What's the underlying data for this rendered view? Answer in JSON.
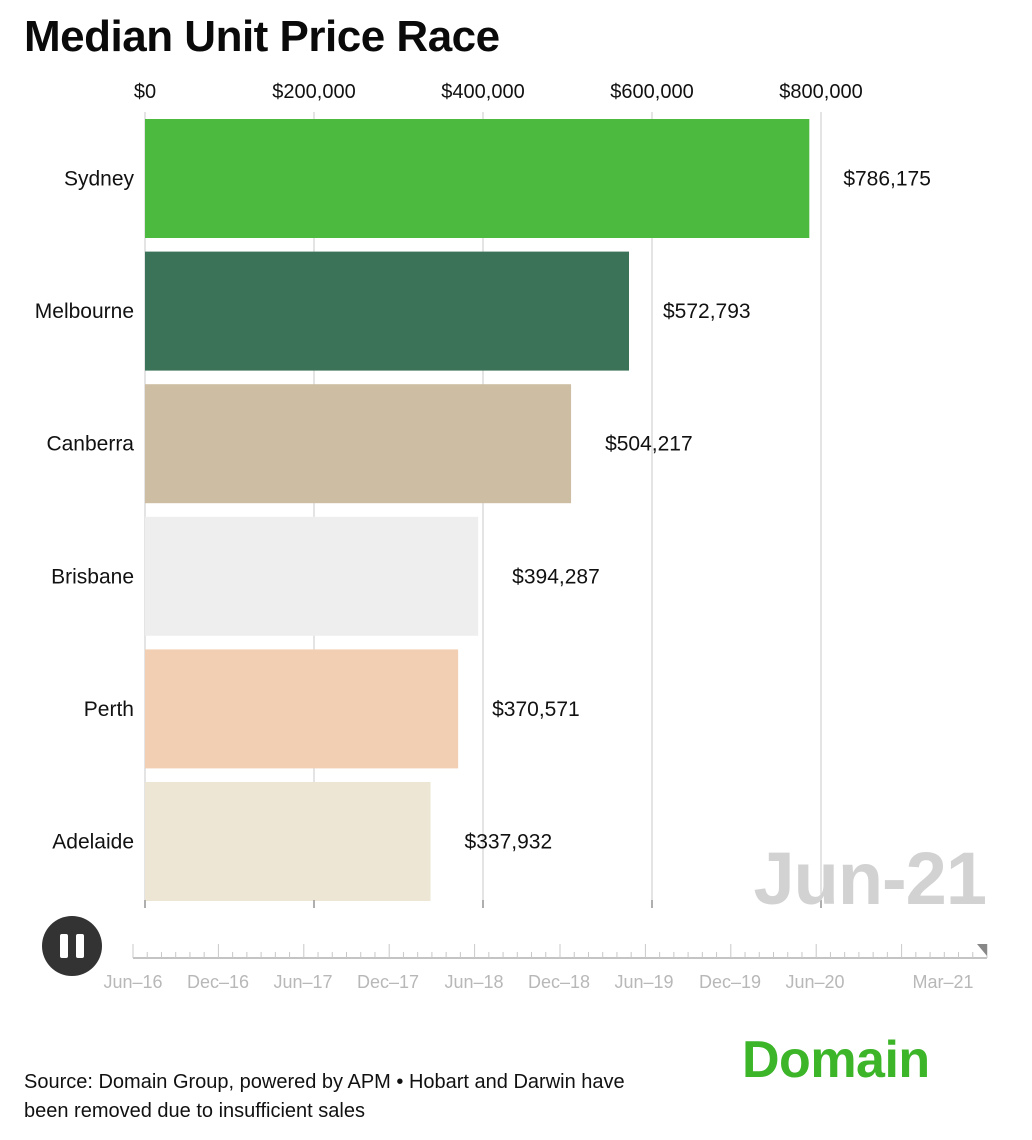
{
  "title": "Median Unit Price Race",
  "current_period": "Jun-21",
  "source_text": "Source: Domain Group, powered by APM • Hobart and Darwin have been removed due to insufficient sales",
  "brand": "Domain",
  "playback": {
    "state": "playing",
    "button_icon": "pause-icon"
  },
  "timeline": {
    "labels": [
      "Jun–16",
      "Dec–16",
      "Jun–17",
      "Dec–17",
      "Jun–18",
      "Dec–18",
      "Jun–19",
      "Dec–19",
      "Jun–20",
      "Mar–21"
    ],
    "position_label": "Jun-21",
    "progress": 1.0
  },
  "chart_data": {
    "type": "bar",
    "orientation": "horizontal",
    "title": "Median Unit Price Race",
    "categories": [
      "Sydney",
      "Melbourne",
      "Canberra",
      "Brisbane",
      "Perth",
      "Adelaide"
    ],
    "values": [
      786175,
      572793,
      504217,
      394287,
      370571,
      337932
    ],
    "value_labels": [
      "$786,175",
      "$572,793",
      "$504,217",
      "$394,287",
      "$370,571",
      "$337,932"
    ],
    "colors": [
      "#4bba3f",
      "#3a7358",
      "#cdbea3",
      "#eeeeee",
      "#f2cfb2",
      "#ede6d4"
    ],
    "xlim": [
      0,
      1000000
    ],
    "xticks": [
      0,
      200000,
      400000,
      600000,
      800000
    ],
    "xtick_labels": [
      "$0",
      "$200,000",
      "$400,000",
      "$600,000",
      "$800,000"
    ],
    "xaxis_position": "top",
    "grid": true,
    "legend": "none"
  }
}
